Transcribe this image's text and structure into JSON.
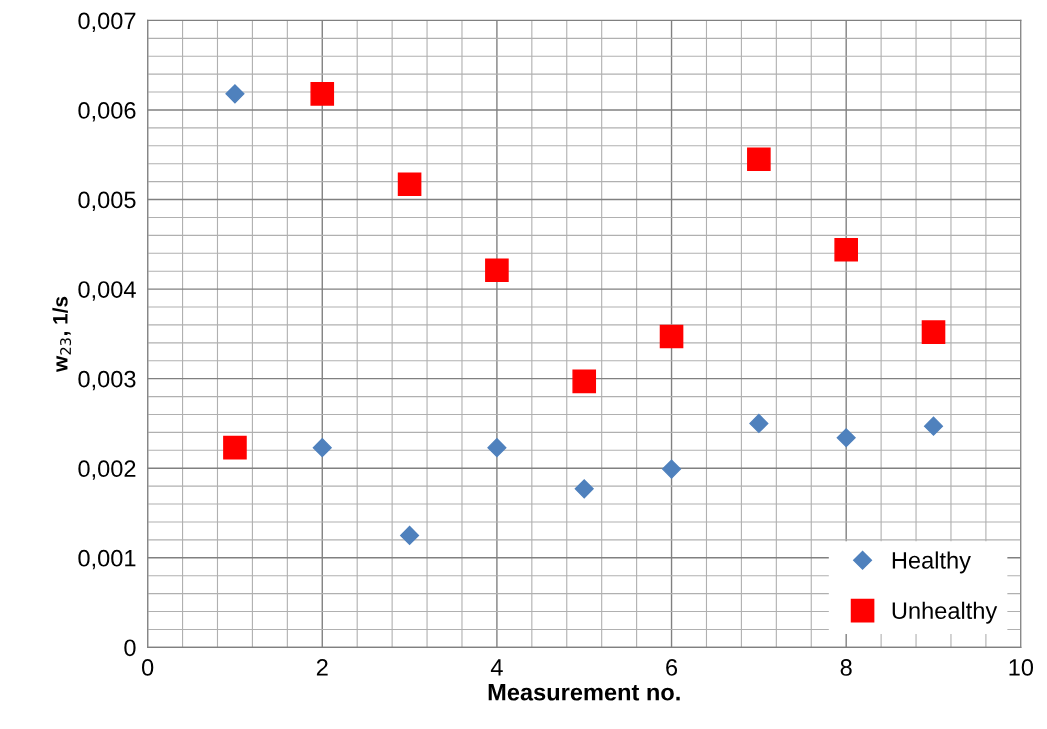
{
  "chart_data": {
    "type": "scatter",
    "xlabel": "Measurement no.",
    "ylabel": "w$_{23}$, 1/s",
    "xlim": [
      0,
      10
    ],
    "xticks": [
      0,
      2,
      4,
      6,
      8,
      10
    ],
    "ylim": [
      0,
      0.007
    ],
    "yticks": [
      0,
      {
        "value": 0.001,
        "label": "0,001"
      },
      {
        "value": 0.002,
        "label": "0,002"
      },
      {
        "value": 0.003,
        "label": "0,003"
      },
      {
        "value": 0.004,
        "label": "0,004"
      },
      {
        "value": 0.005,
        "label": "0,005"
      },
      {
        "value": 0.006,
        "label": "0,006"
      },
      {
        "value": 0.007,
        "label": "0,007"
      }
    ],
    "grid": true,
    "legend": "bottom right",
    "series": [
      {
        "name": "Healthy",
        "color": "#4f81bd",
        "marker": "diamond",
        "x": [
          1,
          2,
          3,
          4,
          5,
          6,
          7,
          8,
          9
        ],
        "values": [
          0.00618,
          0.00223,
          0.00125,
          0.00223,
          0.00177,
          0.00199,
          0.0025,
          0.00234,
          0.00247
        ]
      },
      {
        "name": "Unhealthy",
        "color": "#ff0000",
        "marker": "square",
        "x": [
          1,
          2,
          3,
          4,
          5,
          6,
          7,
          8,
          9
        ],
        "values": [
          0.00223,
          0.00618,
          0.00517,
          0.00421,
          0.00297,
          0.00347,
          0.00545,
          0.00444,
          0.00352
        ]
      }
    ]
  }
}
